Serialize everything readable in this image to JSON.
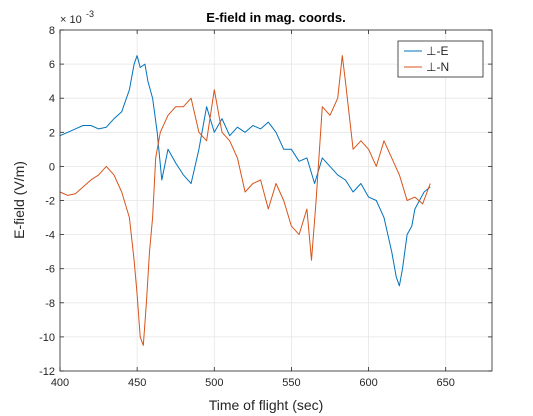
{
  "chart_data": {
    "type": "line",
    "title": "E-field in mag. coords.",
    "xlabel": "Time of flight (sec)",
    "ylabel": "E-field (V/m)",
    "y_exponent_base": "× 10",
    "y_exponent_power": "-3",
    "xlim": [
      400,
      680
    ],
    "ylim": [
      -12,
      8
    ],
    "xticks": [
      400,
      450,
      500,
      550,
      600,
      650
    ],
    "yticks": [
      -12,
      -10,
      -8,
      -6,
      -4,
      -2,
      0,
      2,
      4,
      6,
      8
    ],
    "grid": true,
    "legend_position": "top-right",
    "series": [
      {
        "name": "⊥-E",
        "color": "#0072BD",
        "x": [
          400,
          405,
          410,
          415,
          420,
          425,
          430,
          435,
          440,
          445,
          448,
          450,
          452,
          455,
          457,
          460,
          463,
          466,
          470,
          475,
          480,
          485,
          490,
          495,
          500,
          505,
          510,
          515,
          520,
          525,
          530,
          535,
          540,
          545,
          550,
          555,
          560,
          565,
          570,
          575,
          580,
          585,
          590,
          595,
          600,
          605,
          610,
          615,
          618,
          620,
          622,
          625,
          628,
          630,
          633,
          636,
          640
        ],
        "y": [
          1.8,
          2.0,
          2.2,
          2.4,
          2.4,
          2.2,
          2.3,
          2.8,
          3.2,
          4.5,
          6.0,
          6.5,
          5.8,
          6.0,
          5.0,
          4.0,
          2.0,
          -0.8,
          1.0,
          0.2,
          -0.5,
          -1.0,
          1.0,
          3.5,
          2.0,
          2.8,
          1.8,
          2.3,
          2.0,
          2.4,
          2.2,
          2.6,
          2.0,
          1.0,
          1.0,
          0.3,
          0.5,
          -1.0,
          0.5,
          0.0,
          -0.5,
          -0.8,
          -1.5,
          -1.0,
          -1.8,
          -2.0,
          -3.0,
          -5.0,
          -6.5,
          -7.0,
          -6.0,
          -4.0,
          -3.5,
          -2.5,
          -2.0,
          -1.5,
          -1.2
        ]
      },
      {
        "name": "⊥-N",
        "color": "#D95319",
        "x": [
          400,
          405,
          410,
          415,
          420,
          425,
          430,
          435,
          440,
          445,
          448,
          450,
          452,
          454,
          456,
          458,
          460,
          462,
          465,
          470,
          475,
          480,
          485,
          490,
          495,
          500,
          505,
          510,
          515,
          520,
          525,
          530,
          535,
          540,
          545,
          550,
          555,
          560,
          563,
          566,
          570,
          575,
          580,
          583,
          585,
          590,
          595,
          600,
          605,
          610,
          615,
          620,
          625,
          630,
          635,
          640
        ],
        "y": [
          -1.5,
          -1.7,
          -1.6,
          -1.2,
          -0.8,
          -0.5,
          0.0,
          -0.5,
          -1.5,
          -3.0,
          -5.5,
          -7.5,
          -10.0,
          -10.5,
          -8.0,
          -5.0,
          -3.0,
          0.5,
          2.0,
          3.0,
          3.5,
          3.5,
          4.0,
          2.0,
          1.5,
          4.5,
          2.0,
          1.5,
          0.5,
          -1.5,
          -1.0,
          -0.8,
          -2.5,
          -1.0,
          -2.0,
          -3.5,
          -4.0,
          -2.5,
          -5.5,
          -2.0,
          3.5,
          3.0,
          4.0,
          6.5,
          5.0,
          1.0,
          1.5,
          1.0,
          0.0,
          1.5,
          0.5,
          -0.5,
          -2.0,
          -1.8,
          -2.2,
          -1.0
        ]
      }
    ]
  }
}
